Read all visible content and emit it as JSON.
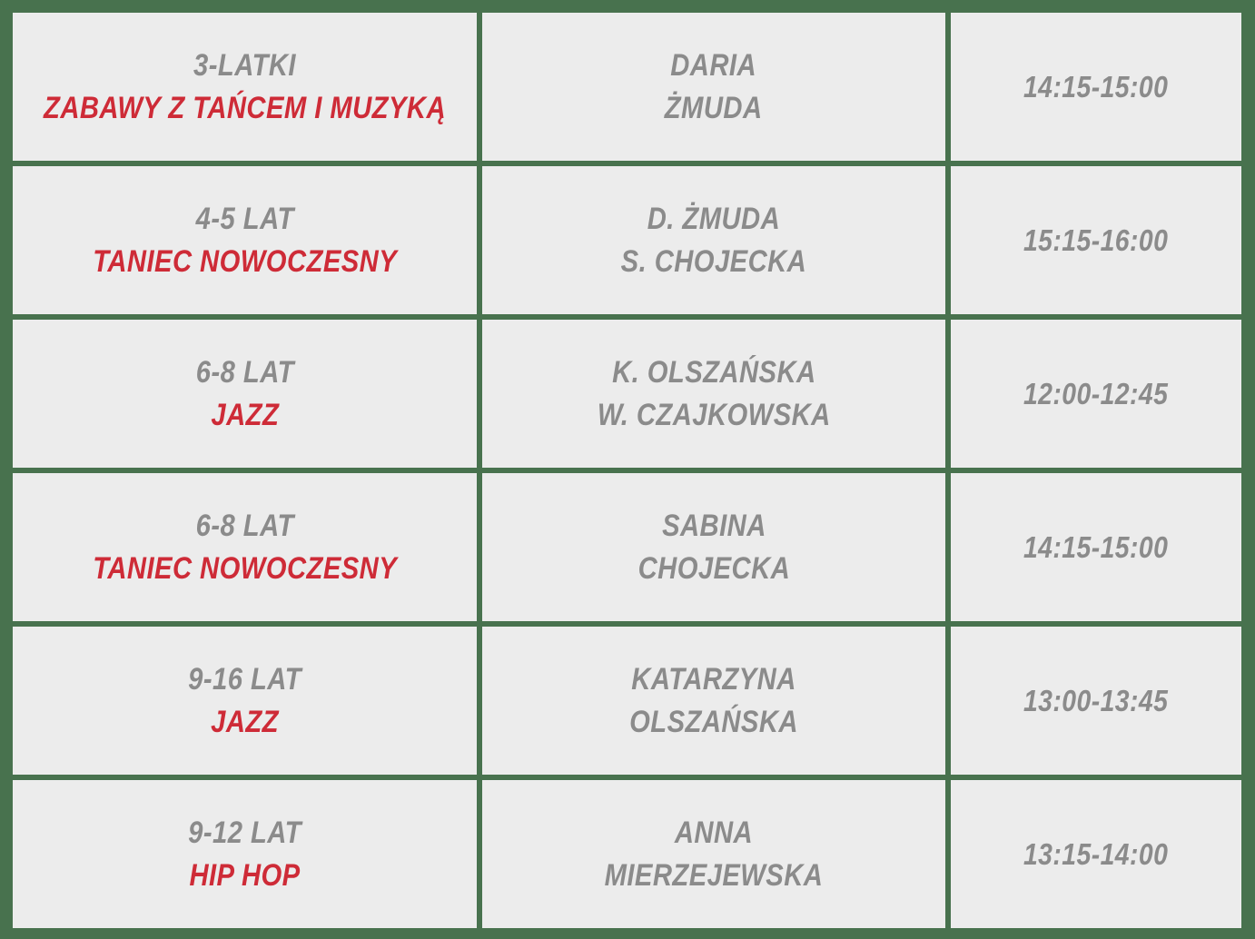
{
  "colors": {
    "background_green": "#48724e",
    "cell_background": "#ececec",
    "text_gray": "#8b8b8b",
    "accent_red": "#ce2b37"
  },
  "schedule": {
    "rows": [
      {
        "age": "3-LATKI",
        "class_name": "ZABAWY Z TAŃCEM I MUZYKĄ",
        "instructor_line1": "DARIA",
        "instructor_line2": "ŻMUDA",
        "time": "14:15-15:00"
      },
      {
        "age": "4-5 LAT",
        "class_name": "TANIEC NOWOCZESNY",
        "instructor_line1": "D. ŻMUDA",
        "instructor_line2": "S. CHOJECKA",
        "time": "15:15-16:00"
      },
      {
        "age": "6-8 LAT",
        "class_name": "JAZZ",
        "instructor_line1": "K. OLSZAŃSKA",
        "instructor_line2": "W. CZAJKOWSKA",
        "time": "12:00-12:45"
      },
      {
        "age": "6-8 LAT",
        "class_name": "TANIEC NOWOCZESNY",
        "instructor_line1": "SABINA",
        "instructor_line2": "CHOJECKA",
        "time": "14:15-15:00"
      },
      {
        "age": "9-16 LAT",
        "class_name": "JAZZ",
        "instructor_line1": "KATARZYNA",
        "instructor_line2": "OLSZAŃSKA",
        "time": "13:00-13:45"
      },
      {
        "age": "9-12 LAT",
        "class_name": "HIP HOP",
        "instructor_line1": "ANNA",
        "instructor_line2": "MIERZEJEWSKA",
        "time": "13:15-14:00"
      }
    ]
  }
}
